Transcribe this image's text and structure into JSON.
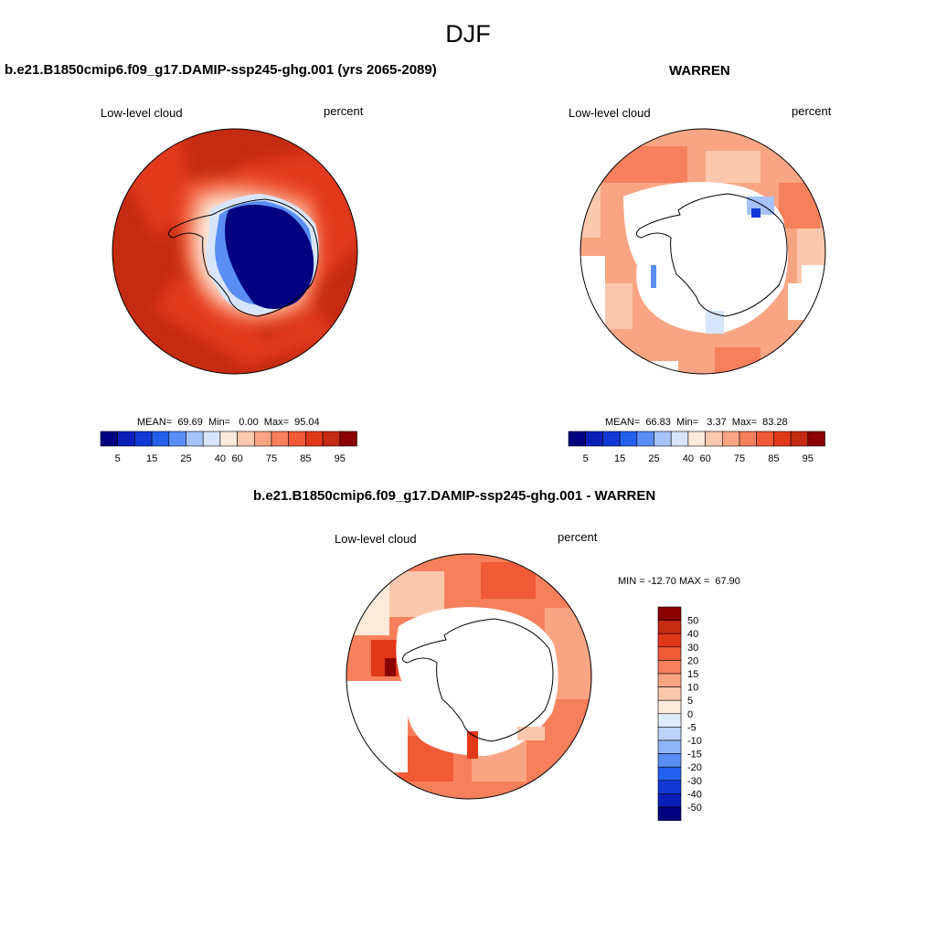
{
  "title": "DJF",
  "colors": {
    "abs_scale": [
      "#000080",
      "#0a1fb8",
      "#1239d6",
      "#2460ee",
      "#5a8ef5",
      "#a5c3f8",
      "#d6e5fc",
      "#fdeadb",
      "#fcc8ad",
      "#f9a584",
      "#f6805c",
      "#f05a36",
      "#e2381a",
      "#c52b10",
      "#8b0000"
    ],
    "diff_scale": [
      "#000080",
      "#0a1fb8",
      "#1239d6",
      "#2460ee",
      "#5a8ef5",
      "#8fb3f7",
      "#bcd3fa",
      "#deebfc",
      "#fdeadb",
      "#fcc8ad",
      "#f9a584",
      "#f6805c",
      "#f05a36",
      "#e2381a",
      "#c52b10",
      "#8b0000"
    ]
  },
  "panels": {
    "model": {
      "title": "b.e21.B1850cmip6.f09_g17.DAMIP-ssp245-ghg.001 (yrs 2065-2089)",
      "left_label": "Low-level cloud",
      "right_label": "percent",
      "stats": "MEAN=  69.69  Min=   0.00  Max=  95.04"
    },
    "obs": {
      "title": "WARREN",
      "left_label": "Low-level cloud",
      "right_label": "percent",
      "stats": "MEAN=  66.83  Min=   3.37  Max=  83.28"
    },
    "diff": {
      "title": "b.e21.B1850cmip6.f09_g17.DAMIP-ssp245-ghg.001 - WARREN",
      "left_label": "Low-level cloud",
      "right_label": "percent",
      "stats": "MIN = -12.70 MAX =  67.90"
    }
  },
  "chart_data": [
    {
      "type": "heatmap",
      "title": "b.e21.B1850cmip6.f09_g17.DAMIP-ssp245-ghg.001 (yrs 2065-2089)",
      "colorbar_labels": [
        "5",
        "15",
        "25",
        "40",
        "60",
        "75",
        "85",
        "95"
      ]
    },
    {
      "type": "heatmap",
      "title": "WARREN",
      "colorbar_labels": [
        "5",
        "15",
        "25",
        "40",
        "60",
        "75",
        "85",
        "95"
      ]
    },
    {
      "type": "heatmap",
      "title": "b.e21.B1850cmip6.f09_g17.DAMIP-ssp245-ghg.001 - WARREN",
      "colorbar_labels": [
        "50",
        "40",
        "30",
        "20",
        "15",
        "10",
        "5",
        "0",
        "-5",
        "-10",
        "-15",
        "-20",
        "-30",
        "-40",
        "-50"
      ]
    }
  ]
}
